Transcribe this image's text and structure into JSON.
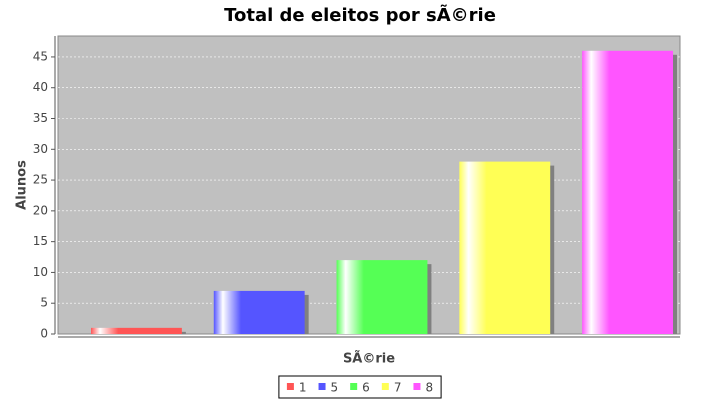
{
  "chart_data": {
    "type": "bar",
    "title": "Total de eleitos por sÃ©rie",
    "x_label": "SÃ©rie",
    "y_label": "Alunos",
    "categories": [
      null
    ],
    "series": [
      {
        "name": "1",
        "color": "#ff5555",
        "values": [
          1
        ]
      },
      {
        "name": "5",
        "color": "#5555ff",
        "values": [
          7
        ]
      },
      {
        "name": "6",
        "color": "#55ff55",
        "values": [
          12
        ]
      },
      {
        "name": "7",
        "color": "#ffff55",
        "values": [
          28
        ]
      },
      {
        "name": "8",
        "color": "#ff55ff",
        "values": [
          46
        ]
      }
    ],
    "ylim": [
      0,
      48.4
    ],
    "yticks": [
      0,
      5,
      10,
      15,
      20,
      25,
      30,
      35,
      40,
      45
    ],
    "grid": true,
    "legend": "bottom"
  }
}
